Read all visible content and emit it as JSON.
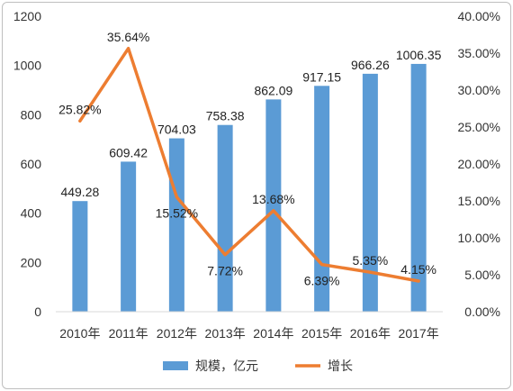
{
  "chart_data": {
    "type": "bar",
    "categories": [
      "2010年",
      "2011年",
      "2012年",
      "2013年",
      "2014年",
      "2015年",
      "2016年",
      "2017年"
    ],
    "series": [
      {
        "name": "规模，亿元",
        "type": "bar",
        "axis": "left",
        "color": "#5b9bd5",
        "values": [
          449.28,
          609.42,
          704.03,
          758.38,
          862.09,
          917.15,
          966.26,
          1006.35
        ],
        "labels": [
          "449.28",
          "609.42",
          "704.03",
          "758.38",
          "862.09",
          "917.15",
          "966.26",
          "1006.35"
        ]
      },
      {
        "name": "增长",
        "type": "line",
        "axis": "right",
        "color": "#ed7d31",
        "values": [
          25.82,
          35.64,
          15.52,
          7.72,
          13.68,
          6.39,
          5.35,
          4.15
        ],
        "labels": [
          "25.82%",
          "35.64%",
          "15.52%",
          "7.72%",
          "13.68%",
          "6.39%",
          "5.35%",
          "4.15%"
        ]
      }
    ],
    "y_left": {
      "range": [
        0,
        1200
      ],
      "ticks": [
        0,
        200,
        400,
        600,
        800,
        1000,
        1200
      ],
      "tick_labels": [
        "0",
        "200",
        "400",
        "600",
        "800",
        "1000",
        "1200"
      ]
    },
    "y_right": {
      "range": [
        0,
        40
      ],
      "ticks": [
        0,
        5,
        10,
        15,
        20,
        25,
        30,
        35,
        40
      ],
      "tick_labels": [
        "0.00%",
        "5.00%",
        "10.00%",
        "15.00%",
        "20.00%",
        "25.00%",
        "30.00%",
        "35.00%",
        "40.00%"
      ]
    },
    "grid": false,
    "legend": "bottom"
  }
}
